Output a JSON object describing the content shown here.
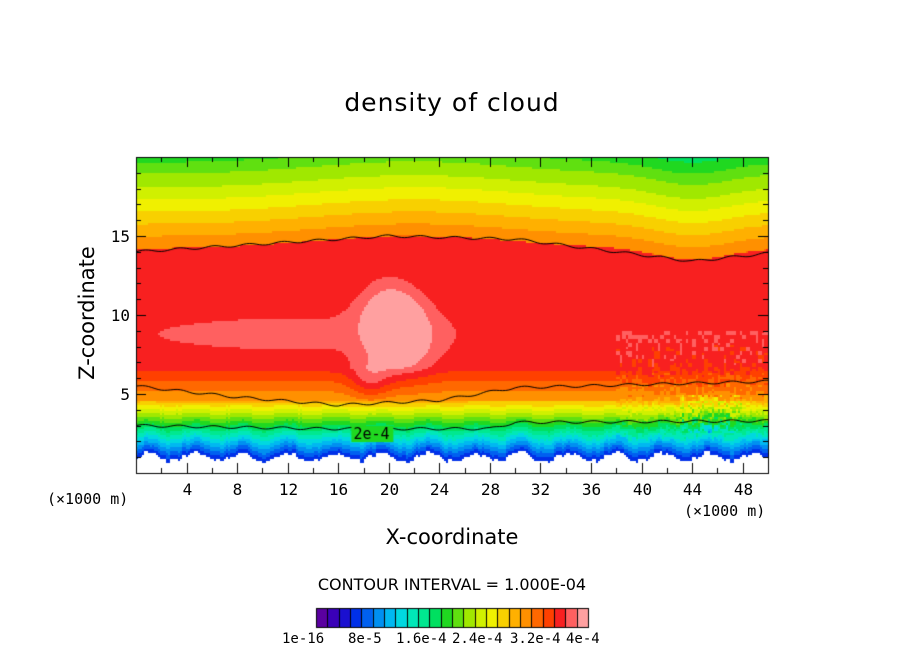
{
  "chart_data": {
    "type": "heatmap",
    "title": "density of cloud",
    "xlabel": "X-coordinate",
    "ylabel": "Z-coordinate",
    "x_unit": "(×1000 m)",
    "x_ticks": [
      4,
      8,
      12,
      16,
      20,
      24,
      28,
      32,
      36,
      40,
      44,
      48
    ],
    "y_ticks": [
      5,
      10,
      15
    ],
    "xlim": [
      0,
      50
    ],
    "ylim": [
      0,
      20
    ],
    "contour_interval_text": "CONTOUR INTERVAL = 1.000E-04",
    "contour_label": "2e-4",
    "colorbar": {
      "min": 1e-16,
      "max": 0.00048,
      "levels": 24,
      "tick_labels": [
        "1e-16",
        "8e-5",
        "1.6e-4",
        "2.4e-4",
        "3.2e-4",
        "4e-4"
      ],
      "colors": [
        "#5a00a0",
        "#3a00b8",
        "#1a10d0",
        "#0030e8",
        "#0060f0",
        "#0090f0",
        "#00b8f0",
        "#00d8e0",
        "#00e8b8",
        "#00e890",
        "#00e060",
        "#20d820",
        "#60e010",
        "#a0e800",
        "#d0f000",
        "#f0f000",
        "#f8d000",
        "#ffb000",
        "#ff9000",
        "#ff6800",
        "#ff4000",
        "#f82020",
        "#ff6060",
        "#ffa0a0"
      ]
    },
    "features": {
      "core_peak": {
        "x": 20.5,
        "z": 9,
        "value": 0.00048
      },
      "contour_lines": [
        {
          "level": 0.0001,
          "z_at_x": [
            [
              0,
              14
            ],
            [
              20,
              15
            ],
            [
              30,
              14.8
            ],
            [
              44,
              13.4
            ],
            [
              50,
              13.9
            ]
          ]
        },
        {
          "level": 0.0001,
          "z_at_x": [
            [
              0,
              5.5
            ],
            [
              8,
              4.8
            ],
            [
              16,
              4.3
            ],
            [
              24,
              4.6
            ],
            [
              30,
              5.4
            ],
            [
              50,
              5.8
            ]
          ]
        },
        {
          "level": 0.0002,
          "z_at_x": [
            [
              0,
              3.0
            ],
            [
              15,
              2.8
            ],
            [
              28,
              2.8
            ],
            [
              30,
              3.2
            ],
            [
              50,
              3.3
            ]
          ]
        }
      ]
    }
  }
}
